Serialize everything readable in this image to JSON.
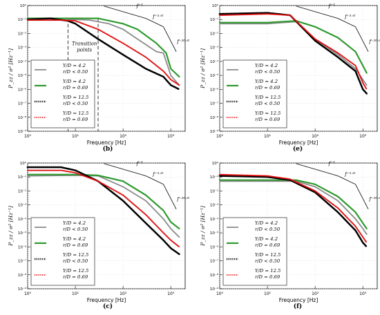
{
  "chart_data": [
    {
      "type": "line",
      "panel_label": "(b)",
      "xlabel": "Frequency  [Hz]",
      "ylabel": "P_zz / σ²  [Hz⁻¹]",
      "xscale": "log",
      "yscale": "log",
      "xlim": [
        1,
        2000
      ],
      "ylim": [
        1e-09,
        1
      ],
      "x_ticks": [
        "10⁰",
        "10¹",
        "10²",
        "10³"
      ],
      "y_ticks": [
        "10⁰",
        "10⁻¹",
        "10⁻²",
        "10⁻³",
        "10⁻⁴",
        "10⁻⁵",
        "10⁻⁶",
        "10⁻⁷",
        "10⁻⁸",
        "10⁻⁹"
      ],
      "annotation": "Transition points",
      "vlines": [
        7,
        30
      ],
      "legend_position": "lower-left",
      "series": [
        {
          "name": "Y/D = 4.2, r/D < 0.50",
          "legend": [
            "Y/D = 4.2",
            "r/D < 0.50"
          ],
          "style": "gray-solid",
          "color": "#8a8a8a",
          "points": [
            [
              1,
              0.09
            ],
            [
              5,
              0.09
            ],
            [
              10,
              0.1
            ],
            [
              20,
              0.09
            ],
            [
              50,
              0.05
            ],
            [
              100,
              0.02
            ],
            [
              200,
              0.004
            ],
            [
              500,
              0.0005
            ],
            [
              700,
              0.0004
            ],
            [
              1000,
              1e-05
            ],
            [
              1500,
              2e-06
            ]
          ]
        },
        {
          "name": "Y/D = 4.2, r/D = 0.69",
          "legend": [
            "Y/D = 4.2",
            "r/D = 0.69"
          ],
          "style": "green-solid",
          "color": "#2e9a2e",
          "points": [
            [
              1,
              0.12
            ],
            [
              10,
              0.12
            ],
            [
              30,
              0.12
            ],
            [
              100,
              0.05
            ],
            [
              200,
              0.02
            ],
            [
              500,
              0.002
            ],
            [
              800,
              0.0004
            ],
            [
              1000,
              3e-05
            ],
            [
              1500,
              8e-06
            ]
          ]
        },
        {
          "name": "Y/D = 12.5, r/D < 0.50",
          "legend": [
            "Y/D = 12.5",
            "r/D < 0.50"
          ],
          "style": "black-dotted",
          "color": "#000000",
          "points": [
            [
              1,
              0.1
            ],
            [
              3,
              0.12
            ],
            [
              7,
              0.08
            ],
            [
              10,
              0.05
            ],
            [
              30,
              0.004
            ],
            [
              100,
              0.0003
            ],
            [
              300,
              3e-05
            ],
            [
              700,
              8e-06
            ],
            [
              1000,
              2e-06
            ],
            [
              1500,
              1e-06
            ]
          ]
        },
        {
          "name": "Y/D = 12.5, r/D = 0.69",
          "legend": [
            "Y/D = 12.5",
            "r/D = 0.69"
          ],
          "style": "red-dotted",
          "color": "#e01010",
          "points": [
            [
              1,
              0.09
            ],
            [
              5,
              0.09
            ],
            [
              10,
              0.08
            ],
            [
              30,
              0.02
            ],
            [
              100,
              0.002
            ],
            [
              300,
              0.0002
            ],
            [
              700,
              2e-05
            ],
            [
              1000,
              5e-06
            ],
            [
              1500,
              2e-06
            ]
          ]
        }
      ],
      "slope_labels": [
        "f⁻¹",
        "f⁻⁵ᐟ³",
        "f⁻²⁰ᐟ³"
      ]
    },
    {
      "type": "line",
      "panel_label": "(e)",
      "xlabel": "Frequency  [Hz]",
      "ylabel": "P_zz / σ²  [Hz⁻¹]",
      "xscale": "log",
      "yscale": "log",
      "xlim": [
        1,
        2000
      ],
      "ylim": [
        1e-09,
        1
      ],
      "x_ticks": [
        "10⁰",
        "10¹",
        "10²",
        "10³"
      ],
      "y_ticks": [
        "10⁰",
        "10⁻¹",
        "10⁻²",
        "10⁻³",
        "10⁻⁴",
        "10⁻⁵",
        "10⁻⁶",
        "10⁻⁷",
        "10⁻⁸",
        "10⁻⁹"
      ],
      "legend_position": "lower-left",
      "series": [
        {
          "name": "Y/D = 4.2, r/D < 0.50",
          "legend": [
            "Y/D = 4.2",
            "r/D < 0.50"
          ],
          "style": "gray-solid",
          "color": "#8a8a8a",
          "points": [
            [
              1,
              0.05
            ],
            [
              10,
              0.05
            ],
            [
              40,
              0.07
            ],
            [
              100,
              0.004
            ],
            [
              300,
              0.0003
            ],
            [
              700,
              3e-05
            ],
            [
              1000,
              5e-06
            ],
            [
              1200,
              2e-06
            ]
          ]
        },
        {
          "name": "Y/D = 4.2, r/D = 0.69",
          "legend": [
            "Y/D = 4.2",
            "r/D = 0.69"
          ],
          "style": "green-solid",
          "color": "#2e9a2e",
          "points": [
            [
              1,
              0.06
            ],
            [
              10,
              0.06
            ],
            [
              40,
              0.08
            ],
            [
              100,
              0.03
            ],
            [
              300,
              0.005
            ],
            [
              700,
              0.0005
            ],
            [
              1000,
              5e-05
            ],
            [
              1200,
              1.5e-05
            ]
          ]
        },
        {
          "name": "Y/D = 12.5, r/D < 0.50",
          "legend": [
            "Y/D = 12.5",
            "r/D < 0.50"
          ],
          "style": "black-dotted",
          "color": "#000000",
          "points": [
            [
              1,
              0.25
            ],
            [
              10,
              0.3
            ],
            [
              30,
              0.2
            ],
            [
              100,
              0.003
            ],
            [
              300,
              0.0002
            ],
            [
              700,
              2e-05
            ],
            [
              1000,
              1e-06
            ],
            [
              1200,
              5e-07
            ]
          ]
        },
        {
          "name": "Y/D = 12.5, r/D = 0.69",
          "legend": [
            "Y/D = 12.5",
            "r/D = 0.69"
          ],
          "style": "red-dotted",
          "color": "#e01010",
          "points": [
            [
              1,
              0.2
            ],
            [
              10,
              0.25
            ],
            [
              30,
              0.2
            ],
            [
              100,
              0.004
            ],
            [
              300,
              0.0004
            ],
            [
              700,
              5e-05
            ],
            [
              1000,
              3e-06
            ],
            [
              1200,
              1e-06
            ]
          ]
        }
      ],
      "slope_labels": [
        "f⁻¹",
        "f⁻⁵ᐟ³",
        "f⁻²⁰ᐟ³"
      ]
    },
    {
      "type": "line",
      "panel_label": "(c)",
      "xlabel": "Frequency  [Hz]",
      "ylabel": "P_zz / σ²  [Hz⁻¹]",
      "xscale": "log",
      "yscale": "log",
      "xlim": [
        1,
        2000
      ],
      "ylim": [
        1e-09,
        1
      ],
      "x_ticks": [
        "10⁰",
        "10¹",
        "10²",
        "10³"
      ],
      "y_ticks": [
        "10⁰",
        "10⁻¹",
        "10⁻²",
        "10⁻³",
        "10⁻⁴",
        "10⁻⁵",
        "10⁻⁶",
        "10⁻⁷",
        "10⁻⁸",
        "10⁻⁹"
      ],
      "legend_position": "lower-left",
      "series": [
        {
          "name": "Y/D = 4.2, r/D < 0.50",
          "legend": [
            "Y/D = 4.2",
            "r/D < 0.50"
          ],
          "style": "gray-solid",
          "color": "#8a8a8a",
          "points": [
            [
              1,
              0.12
            ],
            [
              10,
              0.13
            ],
            [
              30,
              0.12
            ],
            [
              100,
              0.02
            ],
            [
              300,
              0.002
            ],
            [
              700,
              0.0001
            ],
            [
              1000,
              2e-05
            ],
            [
              1500,
              5e-06
            ]
          ]
        },
        {
          "name": "Y/D = 4.2, r/D = 0.69",
          "legend": [
            "Y/D = 4.2",
            "r/D = 0.69"
          ],
          "style": "green-solid",
          "color": "#2e9a2e",
          "points": [
            [
              1,
              0.15
            ],
            [
              10,
              0.15
            ],
            [
              30,
              0.13
            ],
            [
              100,
              0.05
            ],
            [
              300,
              0.005
            ],
            [
              700,
              0.0004
            ],
            [
              1000,
              6e-05
            ],
            [
              1500,
              2e-05
            ]
          ]
        },
        {
          "name": "Y/D = 12.5, r/D < 0.50",
          "legend": [
            "Y/D = 12.5",
            "r/D < 0.50"
          ],
          "style": "black-dotted",
          "color": "#000000",
          "points": [
            [
              1,
              0.5
            ],
            [
              5,
              0.5
            ],
            [
              10,
              0.3
            ],
            [
              30,
              0.05
            ],
            [
              100,
              0.002
            ],
            [
              300,
              5e-05
            ],
            [
              700,
              3e-06
            ],
            [
              1000,
              8e-07
            ],
            [
              1500,
              3e-07
            ]
          ]
        },
        {
          "name": "Y/D = 12.5, r/D = 0.69",
          "legend": [
            "Y/D = 12.5",
            "r/D = 0.69"
          ],
          "style": "red-dotted",
          "color": "#e01010",
          "points": [
            [
              1,
              0.3
            ],
            [
              5,
              0.3
            ],
            [
              10,
              0.2
            ],
            [
              30,
              0.05
            ],
            [
              100,
              0.005
            ],
            [
              300,
              0.0002
            ],
            [
              700,
              1e-05
            ],
            [
              1000,
              3e-06
            ],
            [
              1500,
              1e-06
            ]
          ]
        }
      ],
      "slope_labels": [
        "f⁻¹",
        "f⁻⁵ᐟ³",
        "f⁻²⁰ᐟ³"
      ]
    },
    {
      "type": "line",
      "panel_label": "(f)",
      "xlabel": "Frequency  [Hz]",
      "ylabel": "P_zz / σ²  [Hz⁻¹]",
      "xscale": "log",
      "yscale": "log",
      "xlim": [
        1,
        2000
      ],
      "ylim": [
        1e-09,
        1
      ],
      "x_ticks": [
        "10⁰",
        "10¹",
        "10²",
        "10³"
      ],
      "y_ticks": [
        "10⁰",
        "10⁻¹",
        "10⁻²",
        "10⁻³",
        "10⁻⁴",
        "10⁻⁵",
        "10⁻⁶",
        "10⁻⁷",
        "10⁻⁸",
        "10⁻⁹"
      ],
      "legend_position": "lower-left",
      "series": [
        {
          "name": "Y/D = 4.2, r/D < 0.50",
          "legend": [
            "Y/D = 4.2",
            "r/D < 0.50"
          ],
          "style": "gray-solid",
          "color": "#8a8a8a",
          "points": [
            [
              1,
              0.05
            ],
            [
              10,
              0.05
            ],
            [
              40,
              0.05
            ],
            [
              100,
              0.02
            ],
            [
              300,
              0.002
            ],
            [
              700,
              0.0001
            ],
            [
              1000,
              2e-05
            ],
            [
              1200,
              8e-06
            ]
          ]
        },
        {
          "name": "Y/D = 4.2, r/D = 0.69",
          "legend": [
            "Y/D = 4.2",
            "r/D = 0.69"
          ],
          "style": "green-solid",
          "color": "#2e9a2e",
          "points": [
            [
              1,
              0.06
            ],
            [
              10,
              0.06
            ],
            [
              40,
              0.06
            ],
            [
              100,
              0.03
            ],
            [
              300,
              0.004
            ],
            [
              700,
              0.0003
            ],
            [
              1000,
              5e-05
            ],
            [
              1200,
              2e-05
            ]
          ]
        },
        {
          "name": "Y/D = 12.5, r/D < 0.50",
          "legend": [
            "Y/D = 12.5",
            "r/D < 0.50"
          ],
          "style": "black-dotted",
          "color": "#000000",
          "points": [
            [
              1,
              0.12
            ],
            [
              10,
              0.1
            ],
            [
              30,
              0.06
            ],
            [
              100,
              0.008
            ],
            [
              300,
              0.0003
            ],
            [
              700,
              1.5e-05
            ],
            [
              1000,
              2e-06
            ],
            [
              1200,
              1e-06
            ]
          ]
        },
        {
          "name": "Y/D = 12.5, r/D = 0.69",
          "legend": [
            "Y/D = 12.5",
            "r/D = 0.69"
          ],
          "style": "red-dotted",
          "color": "#e01010",
          "points": [
            [
              1,
              0.15
            ],
            [
              10,
              0.12
            ],
            [
              30,
              0.07
            ],
            [
              100,
              0.01
            ],
            [
              300,
              0.0006
            ],
            [
              700,
              3e-05
            ],
            [
              1000,
              5e-06
            ],
            [
              1200,
              2e-06
            ]
          ]
        }
      ],
      "slope_labels": [
        "f⁻¹",
        "f⁻⁵ᐟ³",
        "f⁻²⁰ᐟ³"
      ]
    }
  ]
}
